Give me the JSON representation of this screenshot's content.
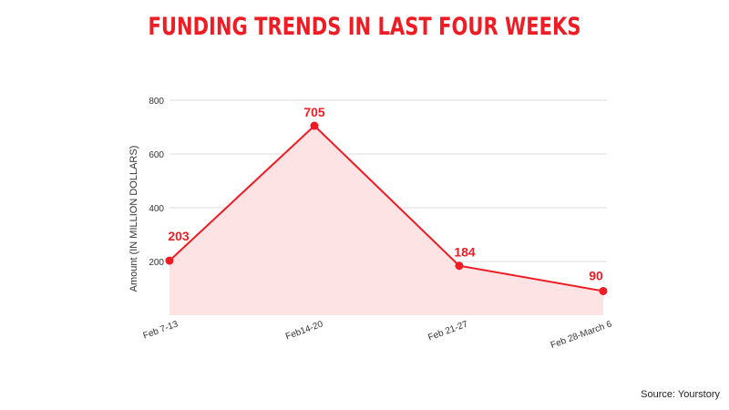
{
  "colors": {
    "accent": "#ee1c24",
    "area_fill": "#fde3e3",
    "grid": "#dddddd",
    "text": "#333333"
  },
  "source": "Source: Yourstory",
  "chart_data": {
    "type": "area",
    "title": "FUNDING TRENDS IN LAST FOUR WEEKS",
    "xlabel": "",
    "ylabel": "Amount (IN MILLION DOLLARS)",
    "categories": [
      "Feb 7-13",
      "Feb14-20",
      "Feb 21-27",
      "Feb 28-March 6"
    ],
    "series": [
      {
        "values": [
          203,
          705,
          184,
          90
        ]
      }
    ],
    "data_labels": [
      "203",
      "705",
      "184",
      "90"
    ],
    "ylim": [
      0,
      800
    ],
    "yticks": [
      200,
      400,
      600,
      800
    ],
    "grid": true,
    "legend": "none"
  }
}
